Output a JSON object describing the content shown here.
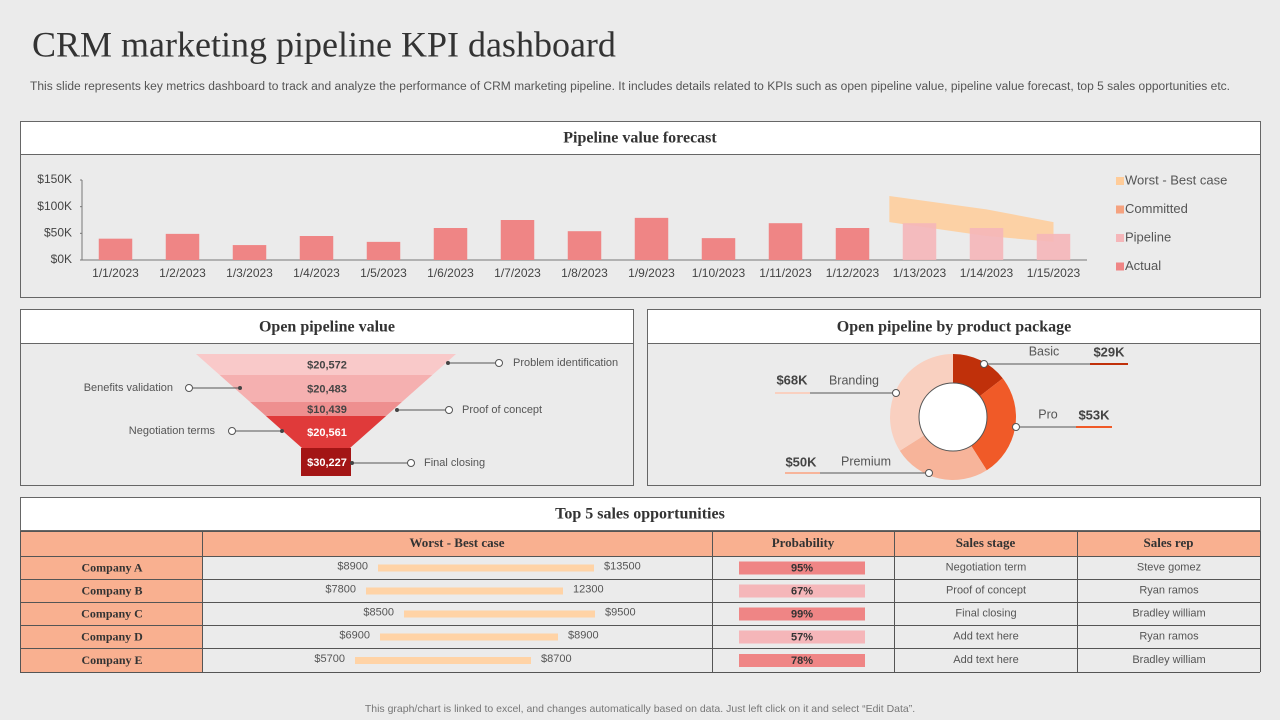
{
  "header": {
    "title": "CRM marketing pipeline KPI dashboard",
    "subtitle": "This slide represents key metrics dashboard to track and analyze the performance of CRM marketing pipeline. It includes details related to KPIs such as open pipeline value, pipeline value forecast, top 5 sales opportunities etc."
  },
  "chart_data": [
    {
      "type": "bar",
      "title": "Pipeline value forecast",
      "categories": [
        "1/1/2023",
        "1/2/2023",
        "1/3/2023",
        "1/4/2023",
        "1/5/2023",
        "1/6/2023",
        "1/7/2023",
        "1/8/2023",
        "1/9/2023",
        "1/10/2023",
        "1/11/2023",
        "1/12/2023",
        "1/13/2023",
        "1/14/2023",
        "1/15/2023"
      ],
      "ylim": [
        0,
        150000
      ],
      "yticks": [
        {
          "value": 0,
          "label": "$0K"
        },
        {
          "value": 50000,
          "label": "$50K"
        },
        {
          "value": 100000,
          "label": "$100K"
        },
        {
          "value": 150000,
          "label": "$150K"
        }
      ],
      "series": [
        {
          "name": "Worst - Best case",
          "type": "band",
          "color": "#ffcc99",
          "low": [
            null,
            null,
            null,
            null,
            null,
            null,
            null,
            null,
            null,
            null,
            null,
            null,
            71000,
            45000,
            34000
          ],
          "high": [
            null,
            null,
            null,
            null,
            null,
            null,
            null,
            null,
            null,
            null,
            null,
            null,
            120000,
            95000,
            71000
          ]
        },
        {
          "name": "Committed",
          "color": "#f5a27f",
          "values": [
            null,
            null,
            null,
            null,
            null,
            null,
            null,
            null,
            null,
            null,
            null,
            null,
            null,
            null,
            null
          ]
        },
        {
          "name": "Pipeline",
          "color": "#f5b6b9",
          "values": [
            null,
            null,
            null,
            null,
            null,
            null,
            null,
            null,
            null,
            null,
            null,
            null,
            69000,
            60000,
            49000
          ]
        },
        {
          "name": "Actual",
          "color": "#ef8585",
          "values": [
            40000,
            49000,
            28000,
            45000,
            34000,
            60000,
            75000,
            54000,
            79000,
            41000,
            69000,
            60000,
            null,
            null,
            null
          ]
        }
      ],
      "legend": "right"
    },
    {
      "type": "funnel",
      "title": "Open pipeline value",
      "categories": [
        "Problem identification",
        "Benefits validation",
        "Proof of concept",
        "Negotiation terms",
        "Final closing"
      ],
      "values": [
        20572,
        20483,
        10439,
        20561,
        30227
      ],
      "value_labels": [
        "$20,572",
        "$20,483",
        "$10,439",
        "$20,561",
        "$30,227"
      ],
      "colors": [
        "#f9c9c9",
        "#f5b0b0",
        "#ee8f8f",
        "#e03a3a",
        "#a31515"
      ]
    },
    {
      "type": "pie",
      "title": "Open pipeline by product package",
      "donut": true,
      "categories": [
        "Basic",
        "Pro",
        "Premium",
        "Branding"
      ],
      "values": [
        29000,
        53000,
        50000,
        68000
      ],
      "value_labels": [
        "$29K",
        "$53K",
        "$50K",
        "$68K"
      ],
      "colors": [
        "#c0300a",
        "#f05a28",
        "#f7b49a",
        "#f9d0c0"
      ]
    }
  ],
  "table": {
    "title": "Top 5 sales opportunities",
    "columns": [
      "Worst - Best case",
      "Probability",
      "Sales stage",
      "Sales rep"
    ],
    "rows": [
      {
        "company": "Company A",
        "worst": "$8900",
        "best": "$13500",
        "probability": "95%",
        "stage": "Negotiation term",
        "rep": "Steve gomez"
      },
      {
        "company": "Company B",
        "worst": "$7800",
        "best": "12300",
        "probability": "67%",
        "stage": "Proof of concept",
        "rep": "Ryan ramos"
      },
      {
        "company": "Company C",
        "worst": "$8500",
        "best": "$9500",
        "probability": "99%",
        "stage": "Final closing",
        "rep": "Bradley william"
      },
      {
        "company": "Company D",
        "worst": "$6900",
        "best": "$8900",
        "probability": "57%",
        "stage": "Add text here",
        "rep": "Ryan ramos"
      },
      {
        "company": "Company E",
        "worst": "$5700",
        "best": "$8700",
        "probability": "78%",
        "stage": "Add text here",
        "rep": "Bradley william"
      }
    ],
    "range_color": "#ffd3a6",
    "probability_colors": [
      "#ef8585",
      "#f5b6b9",
      "#ef8585",
      "#f5b6b9",
      "#ef8585"
    ]
  },
  "footer": "This graph/chart is linked to excel, and changes automatically based on data. Just left click on it and select “Edit Data”."
}
